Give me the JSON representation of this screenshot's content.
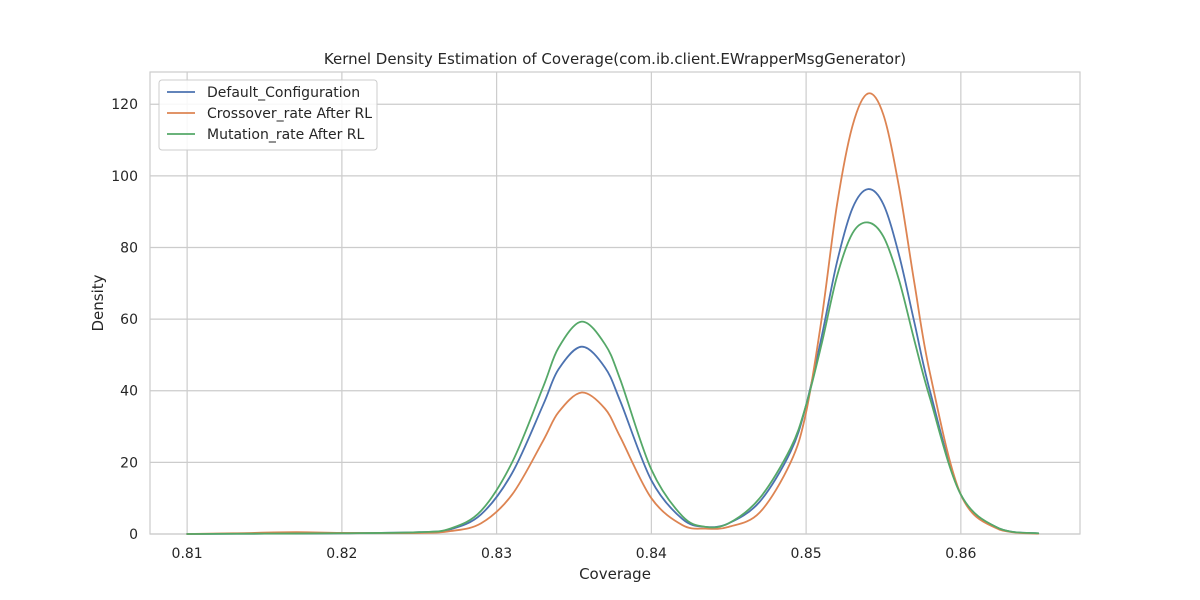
{
  "chart_data": {
    "type": "line",
    "title": "Kernel Density Estimation of Coverage(com.ib.client.EWrapperMsgGenerator)",
    "xlabel": "Coverage",
    "ylabel": "Density",
    "xlim": [
      0.8076,
      0.8677
    ],
    "ylim": [
      0,
      129
    ],
    "xticks": [
      0.81,
      0.82,
      0.83,
      0.84,
      0.85,
      0.86
    ],
    "xtick_labels": [
      "0.81",
      "0.82",
      "0.83",
      "0.84",
      "0.85",
      "0.86"
    ],
    "yticks": [
      0,
      20,
      40,
      60,
      80,
      100,
      120
    ],
    "ytick_labels": [
      "0",
      "20",
      "40",
      "60",
      "80",
      "100",
      "120"
    ],
    "grid": true,
    "legend_position": "top-left",
    "series": [
      {
        "name": "Default_Configuration",
        "color": "#4c72b0",
        "x": [
          0.81,
          0.815,
          0.82,
          0.825,
          0.827,
          0.829,
          0.831,
          0.833,
          0.834,
          0.8355,
          0.837,
          0.838,
          0.84,
          0.842,
          0.8435,
          0.845,
          0.847,
          0.849,
          0.85,
          0.851,
          0.852,
          0.853,
          0.854,
          0.855,
          0.856,
          0.857,
          0.858,
          0.86,
          0.8625,
          0.865
        ],
        "y": [
          0,
          0.1,
          0.2,
          0.5,
          1.3,
          5.5,
          17,
          36,
          46,
          52.3,
          46.5,
          37,
          15,
          4.2,
          2.0,
          3.0,
          9,
          23,
          36,
          55,
          76,
          91,
          96.3,
          92,
          78,
          59,
          40,
          11,
          1.5,
          0.2
        ]
      },
      {
        "name": "Crossover_rate After RL",
        "color": "#dd8452",
        "x": [
          0.81,
          0.813,
          0.817,
          0.82,
          0.825,
          0.827,
          0.829,
          0.831,
          0.833,
          0.834,
          0.8355,
          0.837,
          0.838,
          0.84,
          0.842,
          0.8435,
          0.845,
          0.847,
          0.849,
          0.85,
          0.851,
          0.852,
          0.853,
          0.854,
          0.855,
          0.856,
          0.857,
          0.858,
          0.86,
          0.8625,
          0.865
        ],
        "y": [
          0,
          0.2,
          0.5,
          0.3,
          0.3,
          0.8,
          3,
          11,
          26,
          34,
          39.5,
          35,
          27,
          10,
          2.5,
          1.5,
          2.0,
          6,
          20,
          34,
          60,
          92,
          114,
          123,
          117,
          97,
          70,
          45,
          11,
          1.2,
          0.1
        ]
      },
      {
        "name": "Mutation_rate After RL",
        "color": "#55a868",
        "x": [
          0.81,
          0.815,
          0.82,
          0.825,
          0.827,
          0.829,
          0.831,
          0.833,
          0.834,
          0.8355,
          0.837,
          0.838,
          0.84,
          0.842,
          0.8435,
          0.845,
          0.847,
          0.849,
          0.85,
          0.851,
          0.852,
          0.853,
          0.854,
          0.855,
          0.856,
          0.857,
          0.858,
          0.86,
          0.8625,
          0.865
        ],
        "y": [
          0,
          0.1,
          0.2,
          0.5,
          1.5,
          6.5,
          20,
          41,
          52,
          59.3,
          53,
          43,
          18,
          5,
          2.0,
          3.0,
          10,
          24,
          36,
          53,
          72,
          84,
          87,
          83,
          71,
          54,
          38,
          11,
          1.5,
          0.2
        ]
      }
    ]
  }
}
